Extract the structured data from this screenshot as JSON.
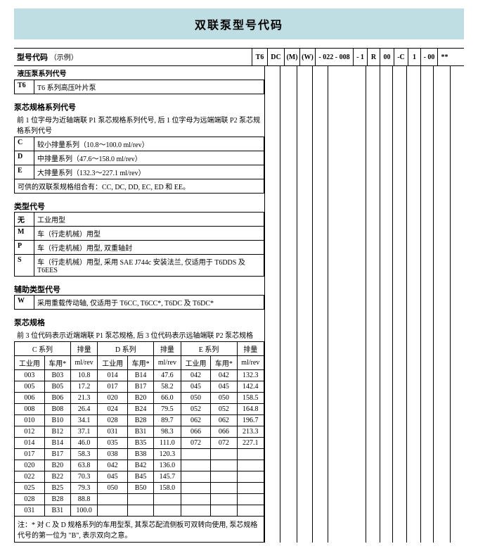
{
  "title": "双联泵型号代码",
  "model_label": "型号代码",
  "model_label_example": "（示例）",
  "model_codes": [
    "T6",
    "DC",
    "(M)",
    "(W)",
    "- 022 - 008",
    "- 1",
    "R",
    "00",
    "-C",
    "1",
    "- 00",
    "**"
  ],
  "code_widths": [
    22,
    24,
    22,
    22,
    54,
    20,
    16,
    20,
    20,
    14,
    24,
    20
  ],
  "series": {
    "header": "液压泵系列代号",
    "rows": [
      {
        "k": "T6",
        "v": "T6 系列高压叶片泵"
      }
    ]
  },
  "cart_spec": {
    "header": "泵芯规格系列代号",
    "intro": "前 1 位字母为近轴端联 P1 泵芯规格系列代号, 后 1 位字母为远端端联 P2 泵芯规格系列代号",
    "rows": [
      {
        "k": "C",
        "v": "较小排量系列（10.8～100.0 ml/rev）"
      },
      {
        "k": "D",
        "v": "中排量系列（47.6～158.0 ml/rev）"
      },
      {
        "k": "E",
        "v": "大排量系列（132.3～227.1 ml/rev）"
      }
    ],
    "combo_note": "可供的双联泵规格组合有：CC, DC, DD, EC, ED 和 EE。"
  },
  "type_code": {
    "header": "类型代号",
    "rows": [
      {
        "k": "无",
        "v": "工业用型"
      },
      {
        "k": "M",
        "v": "车（行走机械）用型"
      },
      {
        "k": "P",
        "v": "车（行走机械）用型, 双重轴封"
      },
      {
        "k": "S",
        "v": "车（行走机械）用型, 采用 SAE J744c 安装法兰, 仅适用于 T6DDS 及 T6EES"
      }
    ]
  },
  "aux_type": {
    "header": "辅助类型代号",
    "rows": [
      {
        "k": "W",
        "v": "采用重载传动轴, 仅适用于 T6CC, T6CC*, T6DC 及 T6DC*"
      }
    ]
  },
  "cart_size": {
    "header": "泵芯规格",
    "intro": "前 3 位代码表示近端端联 P1 泵芯规格, 后 3 位代码表示远轴端联 P2 泵芯规格",
    "series_labels": {
      "C": "C 系列",
      "Cdisp": "排量",
      "D": "D 系列",
      "Ddisp": "排量",
      "E": "E 系列",
      "Edisp": "排量"
    },
    "sub_labels": {
      "ind": "工业用",
      "veh": "车用*",
      "ml": "ml/rev"
    },
    "rows": [
      {
        "ci": "003",
        "cv": "B03",
        "cml": "10.8",
        "di": "014",
        "dv": "B14",
        "dml": "47.6",
        "ei": "042",
        "ev": "042",
        "eml": "132.3"
      },
      {
        "ci": "005",
        "cv": "B05",
        "cml": "17.2",
        "di": "017",
        "dv": "B17",
        "dml": "58.2",
        "ei": "045",
        "ev": "045",
        "eml": "142.4"
      },
      {
        "ci": "006",
        "cv": "B06",
        "cml": "21.3",
        "di": "020",
        "dv": "B20",
        "dml": "66.0",
        "ei": "050",
        "ev": "050",
        "eml": "158.5"
      },
      {
        "ci": "008",
        "cv": "B08",
        "cml": "26.4",
        "di": "024",
        "dv": "B24",
        "dml": "79.5",
        "ei": "052",
        "ev": "052",
        "eml": "164.8"
      },
      {
        "ci": "010",
        "cv": "B10",
        "cml": "34.1",
        "di": "028",
        "dv": "B28",
        "dml": "89.7",
        "ei": "062",
        "ev": "062",
        "eml": "196.7"
      },
      {
        "ci": "012",
        "cv": "B12",
        "cml": "37.1",
        "di": "031",
        "dv": "B31",
        "dml": "98.3",
        "ei": "066",
        "ev": "066",
        "eml": "213.3"
      },
      {
        "ci": "014",
        "cv": "B14",
        "cml": "46.0",
        "di": "035",
        "dv": "B35",
        "dml": "111.0",
        "ei": "072",
        "ev": "072",
        "eml": "227.1"
      },
      {
        "ci": "017",
        "cv": "B17",
        "cml": "58.3",
        "di": "038",
        "dv": "B38",
        "dml": "120.3",
        "ei": "",
        "ev": "",
        "eml": ""
      },
      {
        "ci": "020",
        "cv": "B20",
        "cml": "63.8",
        "di": "042",
        "dv": "B42",
        "dml": "136.0",
        "ei": "",
        "ev": "",
        "eml": ""
      },
      {
        "ci": "022",
        "cv": "B22",
        "cml": "70.3",
        "di": "045",
        "dv": "B45",
        "dml": "145.7",
        "ei": "",
        "ev": "",
        "eml": ""
      },
      {
        "ci": "025",
        "cv": "B25",
        "cml": "79.3",
        "di": "050",
        "dv": "B50",
        "dml": "158.0",
        "ei": "",
        "ev": "",
        "eml": ""
      },
      {
        "ci": "028",
        "cv": "B28",
        "cml": "88.8",
        "di": "",
        "dv": "",
        "dml": "",
        "ei": "",
        "ev": "",
        "eml": ""
      },
      {
        "ci": "031",
        "cv": "B31",
        "cml": "100.0",
        "di": "",
        "dv": "",
        "dml": "",
        "ei": "",
        "ev": "",
        "eml": ""
      }
    ],
    "footnote": "注：* 对 C 及 D 规格系列的车用型泵, 其泵芯配流侧板可双转向使用, 泵芯规格代号的第一位为 \"B\", 表示双向之意。"
  }
}
